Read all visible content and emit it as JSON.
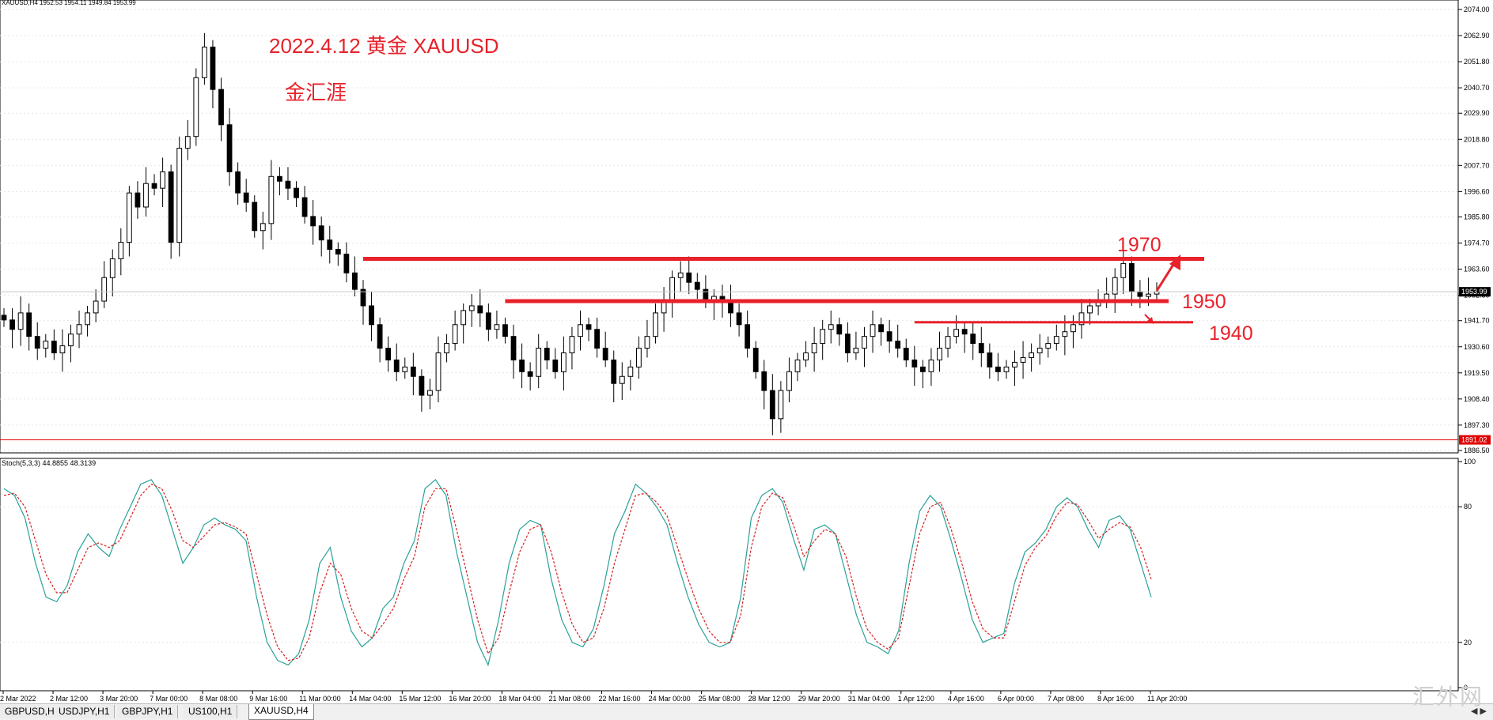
{
  "window": {
    "symbol_header": "XAUUSD,H4  1952.53 1954.11 1949.84 1953.99",
    "stoch_header": "Stoch(5,3,3) 44.8855 48.3139"
  },
  "annotations": {
    "title": "2022.4.12 黄金 XAUUSD",
    "subtitle": "金汇涯",
    "level_1970": "1970",
    "level_1950": "1950",
    "level_1940": "1940"
  },
  "tabs": [
    {
      "label": "GBPUSD,H4",
      "active": false
    },
    {
      "label": "USDJPY,H1",
      "active": false
    },
    {
      "label": "GBPJPY,H1",
      "active": false
    },
    {
      "label": "US100,H1",
      "active": false
    },
    {
      "label": "XAUUSD,H4",
      "active": true
    }
  ],
  "watermark": "汇外网",
  "colors": {
    "annotation": "#e8212a",
    "stoch_main": "#2aa198",
    "stoch_signal": "#d62020",
    "candle": "#000000"
  },
  "chart_data": [
    {
      "type": "candlestick",
      "symbol": "XAUUSD",
      "timeframe": "H4",
      "ylim": [
        1886.5,
        2074.0
      ],
      "y_ticks": [
        "2074.00",
        "2062.90",
        "2051.80",
        "2040.70",
        "2029.90",
        "2018.80",
        "2007.70",
        "1996.60",
        "1985.80",
        "1974.70",
        "1963.60",
        "1952.50",
        "1941.70",
        "1930.60",
        "1919.50",
        "1908.40",
        "1897.30",
        "1886.50"
      ],
      "price_labels": {
        "current": "1953.99",
        "low_line": "1891.02"
      },
      "x_labels": [
        "2 Mar 2022",
        "2 Mar 12:00",
        "3 Mar 20:00",
        "7 Mar 00:00",
        "8 Mar 08:00",
        "9 Mar 16:00",
        "11 Mar 00:00",
        "14 Mar 04:00",
        "15 Mar 12:00",
        "16 Mar 20:00",
        "18 Mar 04:00",
        "21 Mar 08:00",
        "22 Mar 16:00",
        "24 Mar 00:00",
        "25 Mar 08:00",
        "28 Mar 12:00",
        "29 Mar 20:00",
        "31 Mar 04:00",
        "1 Apr 12:00",
        "4 Apr 16:00",
        "6 Apr 00:00",
        "7 Apr 08:00",
        "8 Apr 16:00",
        "11 Apr 20:00"
      ],
      "closes": [
        1942,
        1938,
        1945,
        1935,
        1930,
        1933,
        1928,
        1931,
        1936,
        1940,
        1945,
        1950,
        1960,
        1968,
        1975,
        1996,
        1990,
        2000,
        1998,
        2005,
        1975,
        2015,
        2020,
        2045,
        2058,
        2040,
        2025,
        2005,
        1996,
        1992,
        1980,
        1983,
        2003,
        2001,
        1998,
        1994,
        1986,
        1982,
        1976,
        1972,
        1970,
        1962,
        1955,
        1948,
        1940,
        1930,
        1925,
        1920,
        1922,
        1918,
        1910,
        1912,
        1928,
        1932,
        1940,
        1946,
        1948,
        1945,
        1938,
        1940,
        1935,
        1925,
        1920,
        1918,
        1930,
        1925,
        1920,
        1928,
        1935,
        1940,
        1938,
        1930,
        1925,
        1915,
        1918,
        1922,
        1930,
        1935,
        1945,
        1950,
        1960,
        1962,
        1958,
        1955,
        1950,
        1952,
        1950,
        1945,
        1940,
        1930,
        1920,
        1912,
        1900,
        1912,
        1920,
        1925,
        1928,
        1932,
        1938,
        1940,
        1936,
        1928,
        1930,
        1935,
        1940,
        1937,
        1933,
        1930,
        1925,
        1922,
        1920,
        1925,
        1930,
        1935,
        1938,
        1936,
        1932,
        1928,
        1922,
        1920,
        1922,
        1924,
        1926,
        1928,
        1930,
        1932,
        1935,
        1937,
        1940,
        1945,
        1948,
        1950,
        1953,
        1960,
        1966,
        1954,
        1952,
        1953,
        1954
      ]
    },
    {
      "type": "line",
      "indicator": "Stochastic Oscillator",
      "params": [
        5,
        3,
        3
      ],
      "ylim": [
        0,
        100
      ],
      "y_ticks": [
        "100",
        "80",
        "20",
        "0"
      ],
      "series": [
        {
          "key": "main",
          "values": [
            88,
            85,
            75,
            55,
            40,
            38,
            45,
            60,
            68,
            62,
            58,
            70,
            80,
            90,
            92,
            85,
            70,
            55,
            62,
            72,
            75,
            72,
            70,
            65,
            40,
            20,
            12,
            10,
            15,
            30,
            55,
            62,
            40,
            25,
            18,
            22,
            35,
            40,
            55,
            65,
            88,
            92,
            85,
            60,
            40,
            20,
            10,
            30,
            55,
            70,
            74,
            72,
            48,
            30,
            20,
            18,
            26,
            45,
            68,
            78,
            90,
            86,
            80,
            72,
            55,
            40,
            28,
            20,
            18,
            20,
            40,
            75,
            85,
            88,
            82,
            66,
            52,
            70,
            72,
            68,
            50,
            32,
            20,
            18,
            15,
            25,
            55,
            78,
            85,
            80,
            65,
            48,
            30,
            20,
            22,
            24,
            46,
            60,
            64,
            70,
            80,
            84,
            80,
            70,
            62,
            74,
            76,
            70,
            55,
            40
          ]
        },
        {
          "key": "signal",
          "values": [
            85,
            86,
            80,
            65,
            50,
            42,
            42,
            52,
            62,
            64,
            62,
            65,
            75,
            85,
            90,
            88,
            78,
            65,
            62,
            67,
            72,
            73,
            71,
            68,
            50,
            32,
            18,
            12,
            13,
            22,
            42,
            55,
            50,
            35,
            25,
            22,
            28,
            35,
            48,
            58,
            80,
            88,
            88,
            70,
            50,
            30,
            15,
            22,
            42,
            60,
            70,
            72,
            60,
            42,
            28,
            20,
            22,
            35,
            55,
            70,
            85,
            86,
            82,
            76,
            62,
            48,
            35,
            25,
            20,
            20,
            32,
            62,
            80,
            86,
            84,
            72,
            58,
            65,
            70,
            68,
            58,
            40,
            26,
            20,
            17,
            22,
            45,
            68,
            80,
            82,
            70,
            55,
            38,
            26,
            22,
            22,
            38,
            54,
            62,
            67,
            76,
            82,
            81,
            74,
            66,
            70,
            73,
            71,
            62,
            48
          ]
        }
      ]
    }
  ]
}
